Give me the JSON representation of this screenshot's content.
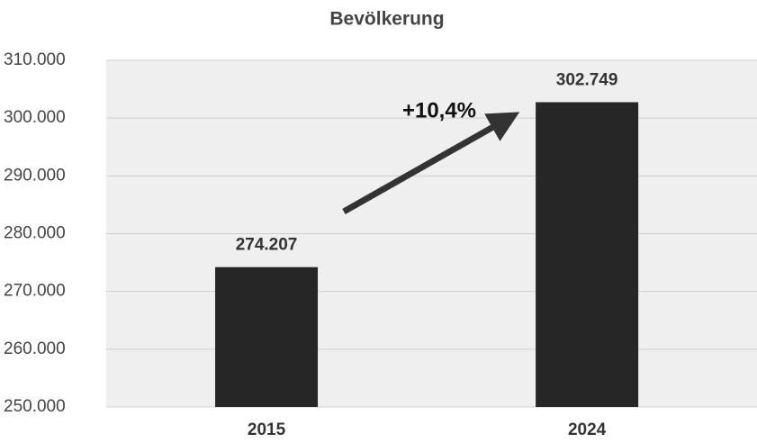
{
  "chart_data": {
    "type": "bar",
    "title": "Bevölkerung",
    "categories": [
      "2015",
      "2024"
    ],
    "values": [
      274207,
      302749
    ],
    "value_labels": [
      "274.207",
      "302.749"
    ],
    "color": "#262626",
    "ylim": [
      250000,
      310000
    ],
    "yticks": [
      {
        "value": 250000,
        "label": "250.000"
      },
      {
        "value": 260000,
        "label": "260.000"
      },
      {
        "value": 270000,
        "label": "270.000"
      },
      {
        "value": 280000,
        "label": "280.000"
      },
      {
        "value": 290000,
        "label": "290.000"
      },
      {
        "value": 300000,
        "label": "300.000"
      },
      {
        "value": 310000,
        "label": "310.000"
      }
    ],
    "grid": true,
    "annotation": "+10,4%"
  }
}
